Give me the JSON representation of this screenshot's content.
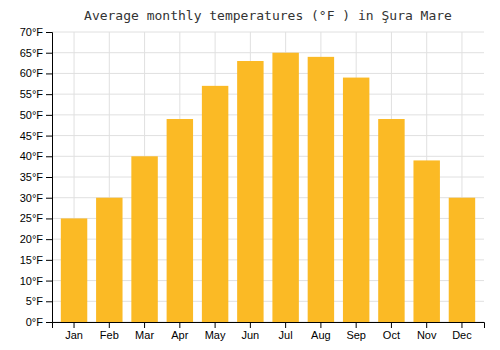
{
  "chart_data": {
    "type": "bar",
    "title": "Average monthly temperatures (°F ) in Şura Mare",
    "categories": [
      "Jan",
      "Feb",
      "Mar",
      "Apr",
      "May",
      "Jun",
      "Jul",
      "Aug",
      "Sep",
      "Oct",
      "Nov",
      "Dec"
    ],
    "values": [
      25,
      30,
      40,
      49,
      57,
      63,
      65,
      64,
      59,
      49,
      39,
      30
    ],
    "color": "#FBBA25",
    "ylim": [
      0,
      70
    ],
    "yticks": [
      {
        "value": 0,
        "label": "0°F"
      },
      {
        "value": 5,
        "label": "5°F"
      },
      {
        "value": 10,
        "label": "10°F"
      },
      {
        "value": 15,
        "label": "15°F"
      },
      {
        "value": 20,
        "label": "20°F"
      },
      {
        "value": 25,
        "label": "25°F"
      },
      {
        "value": 30,
        "label": "30°F"
      },
      {
        "value": 35,
        "label": "35°F"
      },
      {
        "value": 40,
        "label": "40°F"
      },
      {
        "value": 45,
        "label": "45°F"
      },
      {
        "value": 50,
        "label": "50°F"
      },
      {
        "value": 55,
        "label": "55°F"
      },
      {
        "value": 60,
        "label": "60°F"
      },
      {
        "value": 65,
        "label": "65°F"
      },
      {
        "value": 70,
        "label": "70°F"
      }
    ],
    "grid": true
  }
}
